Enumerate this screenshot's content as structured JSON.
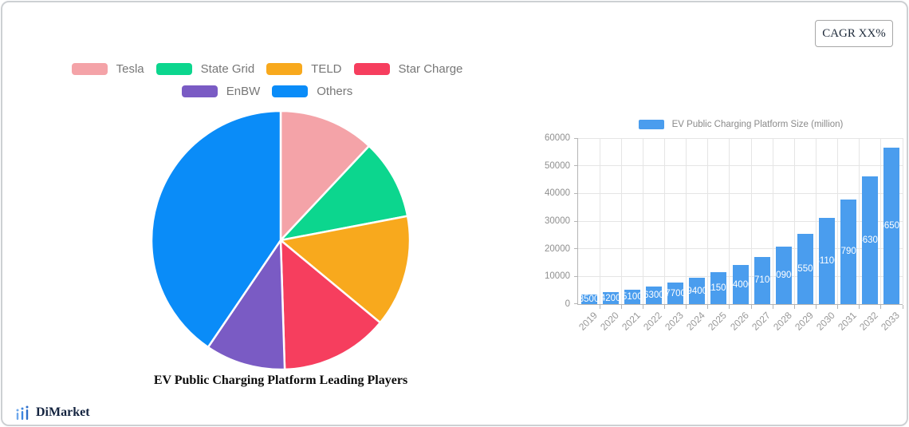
{
  "header": {
    "cagr_label": "CAGR XX%"
  },
  "brand": {
    "name": "DiMarket",
    "icon": "mini-bar-chart-icon",
    "icon_color": "#3c86e0",
    "text_color": "#13233f"
  },
  "palette": {
    "legend_text": "#777777",
    "axis_text": "#8f8f8f",
    "grid": "#e5e5e5",
    "axis_line": "#b5b5b5"
  },
  "chart_data": [
    {
      "type": "pie",
      "title": "EV Public Charging Platform Leading Players",
      "labels": [
        "Tesla",
        "State Grid",
        "TELD",
        "Star Charge",
        "EnBW",
        "Others"
      ],
      "values_percent": [
        12,
        10,
        14,
        13.5,
        10,
        40.5
      ],
      "colors": [
        "#F4A3A8",
        "#0CD68E",
        "#F8A91D",
        "#F63E5E",
        "#7A5BC4",
        "#0A8CF8"
      ],
      "legend_position": "top",
      "legend_rows": [
        4,
        2
      ],
      "start_angle_deg": 0,
      "clockwise": true,
      "slice_separator_color": "#ffffff"
    },
    {
      "type": "bar",
      "legend": "EV Public Charging Platform Size (million)",
      "categories": [
        "2019",
        "2020",
        "2021",
        "2022",
        "2023",
        "2024",
        "2025",
        "2026",
        "2027",
        "2028",
        "2029",
        "2030",
        "2031",
        "2032",
        "2033"
      ],
      "values": [
        3500,
        4200,
        5100,
        6300,
        7700,
        9400,
        11500,
        14000,
        17100,
        20900,
        25500,
        31100,
        37900,
        46300,
        56500
      ],
      "bar_color": "#4A9DEE",
      "value_label_color": "#ffffff",
      "ylim": [
        0,
        60000
      ],
      "yticks": [
        0,
        10000,
        20000,
        30000,
        40000,
        50000,
        60000
      ],
      "grid": true,
      "x_label_rotation_deg": -45
    }
  ]
}
